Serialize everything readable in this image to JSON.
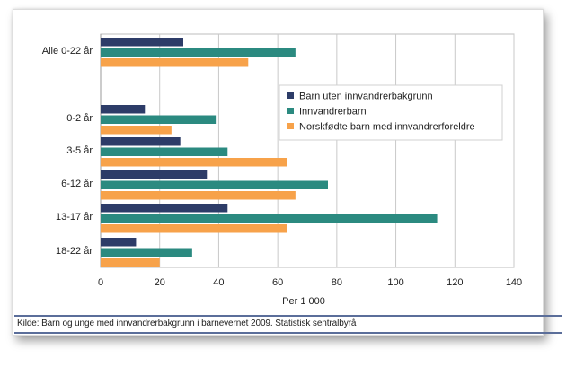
{
  "chart_data": {
    "type": "bar",
    "orientation": "horizontal",
    "title": "",
    "xlabel": "Per 1 000",
    "ylabel": "",
    "xlim": [
      0,
      140
    ],
    "xticks": [
      0,
      20,
      40,
      60,
      80,
      100,
      120,
      140
    ],
    "grid": true,
    "legend_position": "right-middle",
    "categories": [
      "Alle 0-22 år",
      "",
      "0-2 år",
      "3-5 år",
      "6-12 år",
      "13-17 år",
      "18-22 år"
    ],
    "series": [
      {
        "name": "Barn uten innvandrerbakgrunn",
        "color": "#2d3c68",
        "values": [
          28,
          null,
          15,
          27,
          36,
          43,
          12
        ]
      },
      {
        "name": "Innvandrerbarn",
        "color": "#2b8a80",
        "values": [
          66,
          null,
          39,
          43,
          77,
          114,
          31
        ]
      },
      {
        "name": "Norskfødte barn med innvandrerforeldre",
        "color": "#f7a24a",
        "values": [
          50,
          null,
          24,
          63,
          66,
          63,
          20
        ]
      }
    ]
  },
  "source_note": "Kilde: Barn og unge med innvandrerbakgrunn i barnevernet 2009. Statistisk sentralbyrå"
}
